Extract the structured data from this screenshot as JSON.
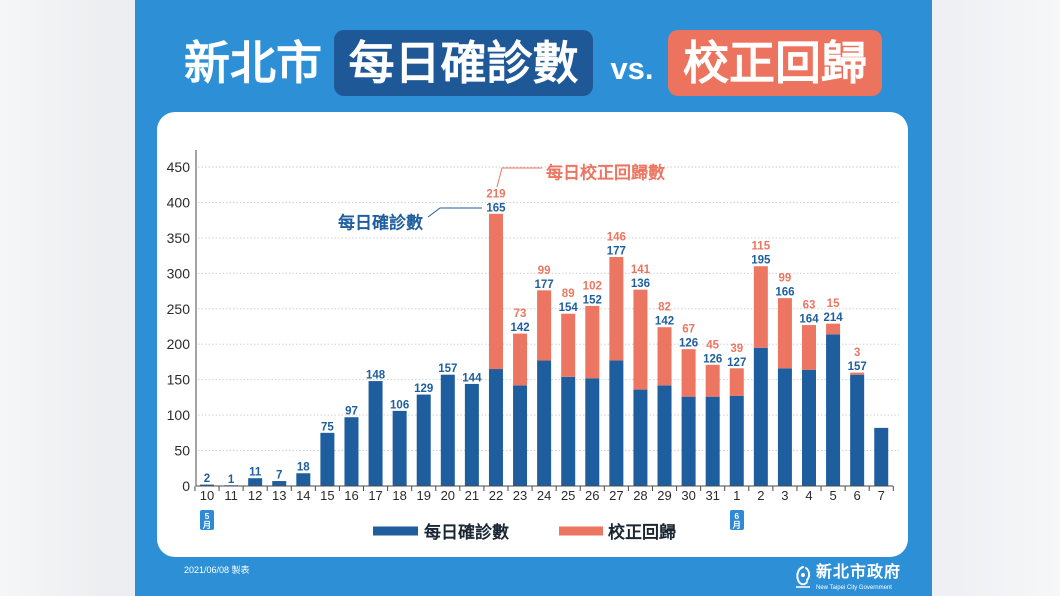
{
  "title": {
    "city": "新北市",
    "confirmed": "每日確診數",
    "vs": "vs.",
    "correction": "校正回歸"
  },
  "colors": {
    "poster_background": "#2d90d7",
    "title_confirmed_box": "#1f5897",
    "title_correction_box": "#ec745f",
    "month_marker": "#2e8ad6"
  },
  "chart_data": {
    "type": "bar",
    "stacked": true,
    "categories": [
      "10",
      "11",
      "12",
      "13",
      "14",
      "15",
      "16",
      "17",
      "18",
      "19",
      "20",
      "21",
      "22",
      "23",
      "24",
      "25",
      "26",
      "27",
      "28",
      "29",
      "30",
      "31",
      "1",
      "2",
      "3",
      "4",
      "5",
      "6",
      "7"
    ],
    "month_markers": [
      {
        "category_index": 0,
        "label": "5月"
      },
      {
        "category_index": 22,
        "label": "6月"
      }
    ],
    "ylim": [
      0,
      450
    ],
    "yticks": [
      0,
      50,
      100,
      150,
      200,
      250,
      300,
      350,
      400,
      450
    ],
    "grid": true,
    "legend_position": "bottom",
    "series": [
      {
        "name": "每日確診數",
        "color": "#1f5e9e",
        "values": [
          2,
          1,
          11,
          7,
          18,
          75,
          97,
          148,
          106,
          129,
          157,
          144,
          165,
          142,
          177,
          154,
          152,
          177,
          136,
          142,
          126,
          126,
          127,
          195,
          166,
          164,
          214,
          157,
          82
        ],
        "data_labels": [
          "2",
          "1",
          "11",
          "7",
          "18",
          "75",
          "97",
          "148",
          "106",
          "129",
          "157",
          "144",
          "165",
          "142",
          "177",
          "154",
          "152",
          "177",
          "136",
          "142",
          "126",
          "126",
          "127",
          "195",
          "166",
          "164",
          "214",
          "157",
          null
        ]
      },
      {
        "name": "校正回歸",
        "color": "#ec7661",
        "values": [
          null,
          null,
          null,
          null,
          null,
          null,
          null,
          null,
          null,
          null,
          null,
          null,
          219,
          73,
          99,
          89,
          102,
          146,
          141,
          82,
          67,
          45,
          39,
          115,
          99,
          63,
          15,
          3,
          null
        ],
        "data_labels": [
          null,
          null,
          null,
          null,
          null,
          null,
          null,
          null,
          null,
          null,
          null,
          null,
          "219",
          "73",
          "99",
          "89",
          "102",
          "146",
          "141",
          "82",
          "67",
          "45",
          "39",
          "115",
          "99",
          "63",
          "15",
          "3",
          null
        ]
      }
    ],
    "annotations": [
      {
        "text": "每日校正回歸數"
      },
      {
        "text": "每日確診數"
      }
    ]
  },
  "footer": {
    "date_note": "2021/06/08 製表",
    "logo_name": "新北市政府",
    "logo_subtitle": "New Taipei City Government"
  }
}
